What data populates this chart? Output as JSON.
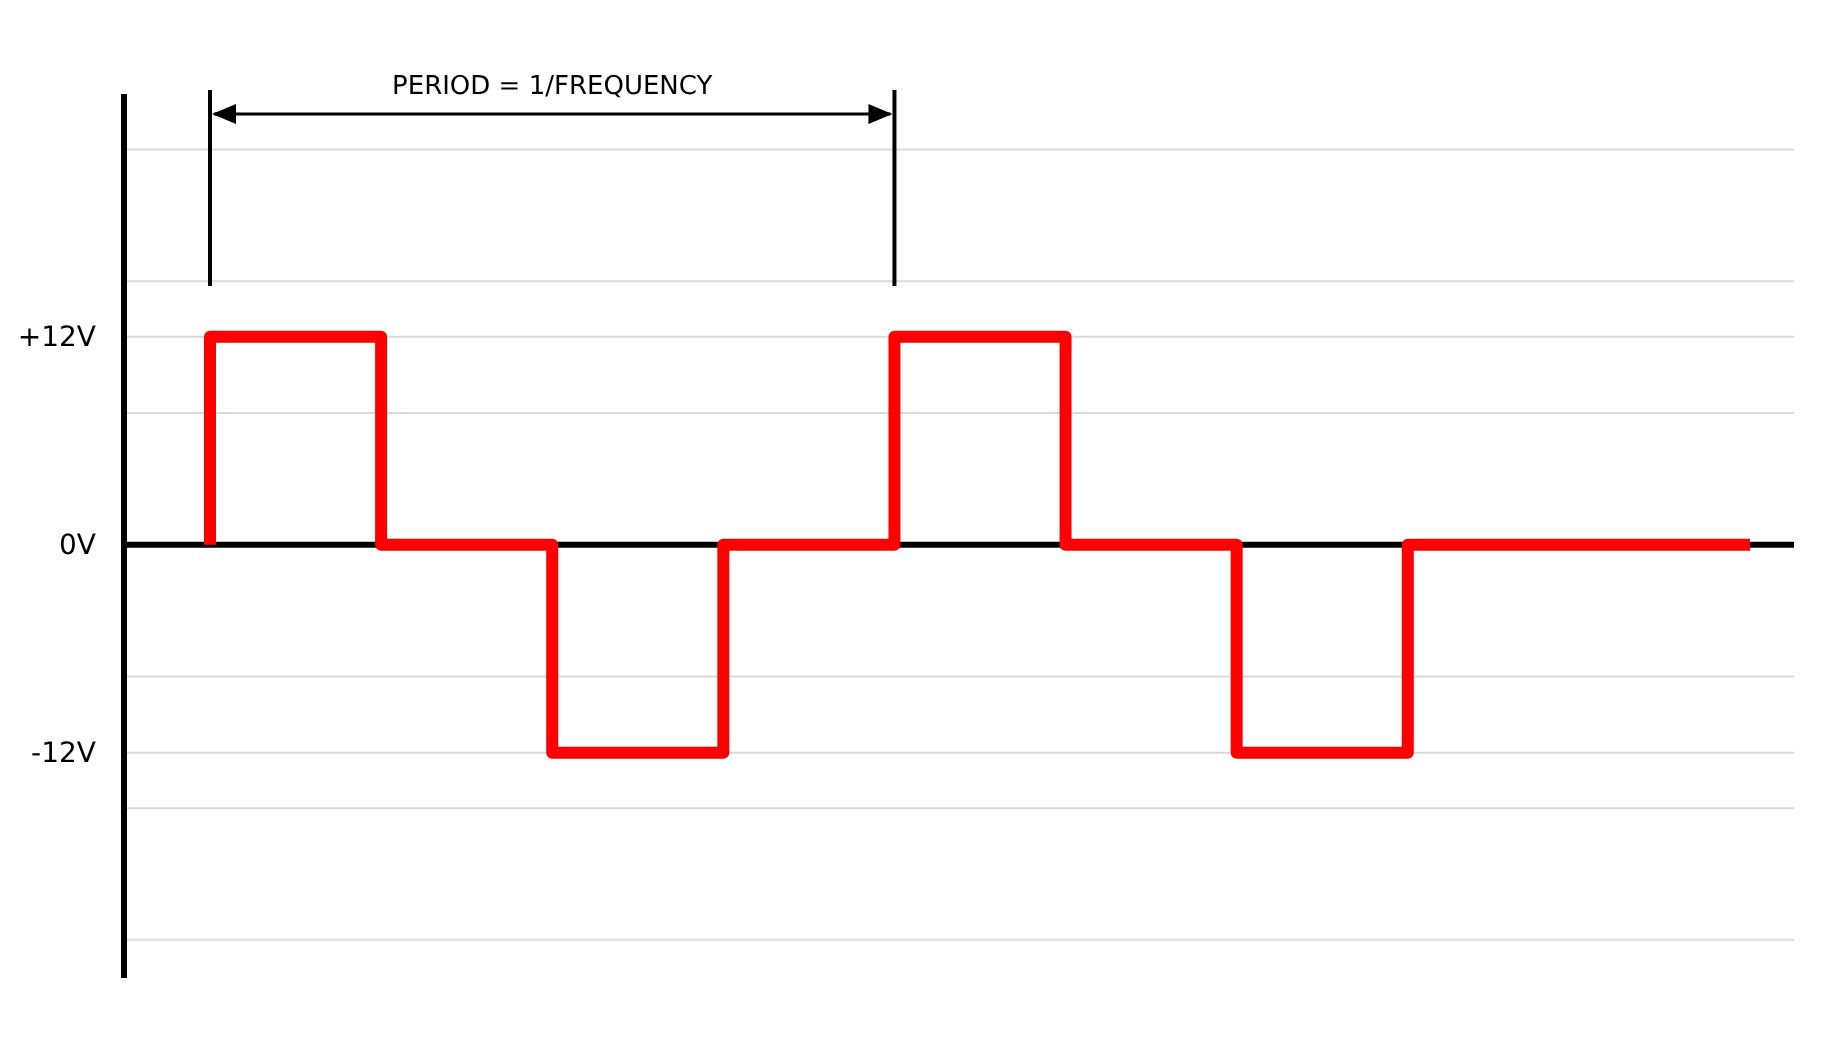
{
  "chart_data": {
    "type": "step",
    "categories": [
      null,
      null,
      null,
      null,
      null,
      null,
      null,
      null,
      null,
      null
    ],
    "series": [
      {
        "color": "#ff0000",
        "values": [
          0,
          12,
          0,
          -12,
          0,
          12,
          0,
          -12,
          0,
          0
        ]
      }
    ],
    "ylim": [
      -25,
      26
    ],
    "yticks": [
      {
        "value": 22.8,
        "label": null
      },
      {
        "value": 15.2,
        "label": null
      },
      {
        "value": 12,
        "label": "+12V"
      },
      {
        "value": 7.6,
        "label": null
      },
      {
        "value": 0,
        "label": "0V"
      },
      {
        "value": -7.6,
        "label": null
      },
      {
        "value": -12,
        "label": "-12V"
      },
      {
        "value": -15.2,
        "label": null
      },
      {
        "value": -22.8,
        "label": null
      }
    ],
    "grid": "y",
    "tick_labels": "y",
    "annotations": [
      "PERIOD = 1/FREQUENCY"
    ]
  }
}
